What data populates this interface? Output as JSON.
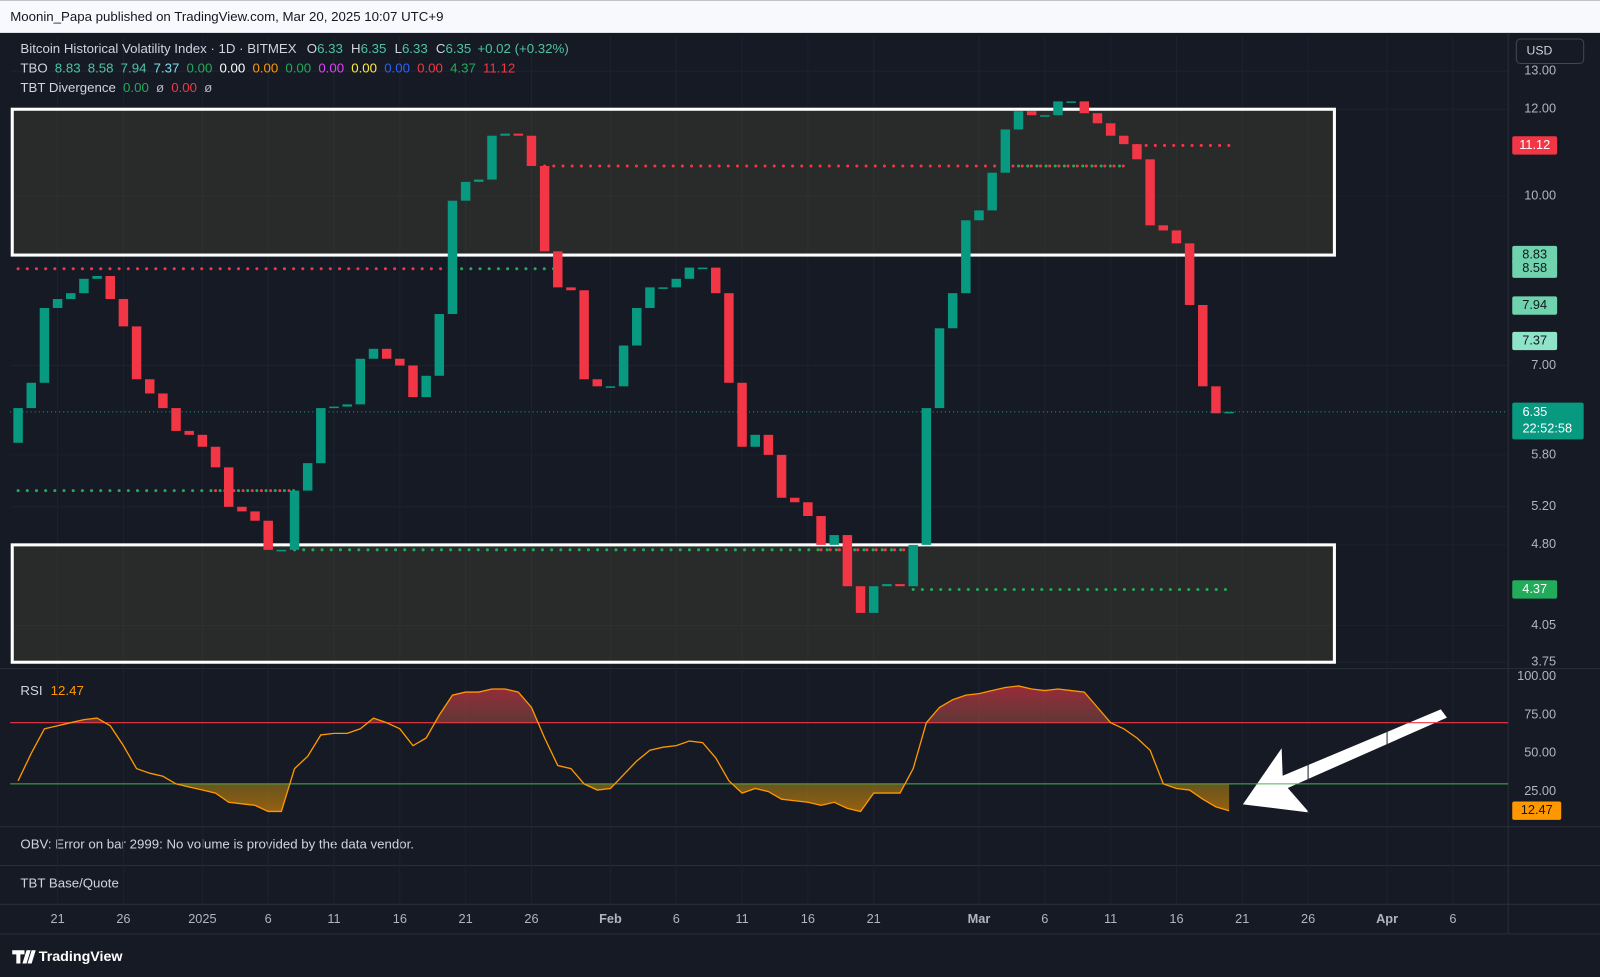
{
  "header": {
    "byline": "Moonin_Papa published on TradingView.com, Mar 20, 2025 10:07 UTC+9",
    "currency": "USD",
    "brand": "TradingView"
  },
  "legend": {
    "symbol": "Bitcoin Historical Volatility Index · 1D · BITMEX",
    "ohlc": [
      {
        "label": "O",
        "value": "6.33"
      },
      {
        "label": "H",
        "value": "6.35"
      },
      {
        "label": "L",
        "value": "6.33"
      },
      {
        "label": "C",
        "value": "6.35"
      }
    ],
    "change": "+0.02 (+0.32%)",
    "tbo": {
      "label": "TBO",
      "values": [
        {
          "text": "8.83",
          "color": "#4fc3a1"
        },
        {
          "text": "8.58",
          "color": "#4fc3a1"
        },
        {
          "text": "7.94",
          "color": "#4fc3a1"
        },
        {
          "text": "7.37",
          "color": "#80deea"
        },
        {
          "text": "0.00",
          "color": "#22ab5a"
        },
        {
          "text": "0.00",
          "color": "#ffffff"
        },
        {
          "text": "0.00",
          "color": "#ff9800"
        },
        {
          "text": "0.00",
          "color": "#22ab5a"
        },
        {
          "text": "0.00",
          "color": "#e040fb"
        },
        {
          "text": "0.00",
          "color": "#ffeb3b"
        },
        {
          "text": "0.00",
          "color": "#2962ff"
        },
        {
          "text": "0.00",
          "color": "#f23645"
        },
        {
          "text": "4.37",
          "color": "#22ab5a"
        },
        {
          "text": "11.12",
          "color": "#f23645"
        }
      ]
    },
    "tbt": {
      "label": "TBT Divergence",
      "values": [
        {
          "text": "0.00",
          "color": "#22ab5a"
        },
        {
          "text": "ø",
          "color": "#b2b5be"
        },
        {
          "text": "0.00",
          "color": "#f23645"
        },
        {
          "text": "ø",
          "color": "#b2b5be"
        }
      ]
    }
  },
  "chart_data": {
    "type": "candlestick",
    "log": true,
    "grid": true,
    "up_color": "#089981",
    "down_color": "#f23645",
    "xlim": [
      -0.6,
      113.2
    ],
    "ylim": [
      3.7,
      14
    ],
    "xticks": [
      {
        "value": 3,
        "label": "21"
      },
      {
        "value": 8,
        "label": "26"
      },
      {
        "value": 14,
        "label": "2025"
      },
      {
        "value": 19,
        "label": "6"
      },
      {
        "value": 24,
        "label": "11"
      },
      {
        "value": 29,
        "label": "16"
      },
      {
        "value": 34,
        "label": "21"
      },
      {
        "value": 39,
        "label": "26"
      },
      {
        "value": 45,
        "label": "Feb"
      },
      {
        "value": 50,
        "label": "6"
      },
      {
        "value": 55,
        "label": "11"
      },
      {
        "value": 60,
        "label": "16"
      },
      {
        "value": 65,
        "label": "21"
      },
      {
        "value": 73,
        "label": "Mar"
      },
      {
        "value": 78,
        "label": "6"
      },
      {
        "value": 83,
        "label": "11"
      },
      {
        "value": 88,
        "label": "16"
      },
      {
        "value": 93,
        "label": "21"
      },
      {
        "value": 98,
        "label": "26"
      },
      {
        "value": 104,
        "label": "Apr"
      },
      {
        "value": 109,
        "label": "6"
      }
    ],
    "yticks": [
      {
        "value": 13,
        "label": "13.00"
      },
      {
        "value": 12,
        "label": "12.00"
      },
      {
        "value": 10,
        "label": "10.00"
      },
      {
        "value": 7,
        "label": "7.00"
      },
      {
        "value": 5.8,
        "label": "5.80"
      },
      {
        "value": 5.2,
        "label": "5.20"
      },
      {
        "value": 4.8,
        "label": "4.80"
      },
      {
        "value": 4.05,
        "label": "4.05"
      },
      {
        "value": 3.75,
        "label": "3.75"
      }
    ],
    "open": [
      5.95,
      6.4,
      6.75,
      7.9,
      8.05,
      8.15,
      8.4,
      8.45,
      8.05,
      7.6,
      6.8,
      6.6,
      6.4,
      6.1,
      6.05,
      5.9,
      5.65,
      5.2,
      5.15,
      5.05,
      4.75,
      4.75,
      5.38,
      5.7,
      6.4,
      6.42,
      6.45,
      7.1,
      7.25,
      7.1,
      7.0,
      6.55,
      6.85,
      7.8,
      9.9,
      10.3,
      10.35,
      11.35,
      11.4,
      11.35,
      10.65,
      8.9,
      8.25,
      8.2,
      6.8,
      6.7,
      6.7,
      7.3,
      7.9,
      8.25,
      8.25,
      8.4,
      8.6,
      8.6,
      8.15,
      6.75,
      5.9,
      6.05,
      5.8,
      5.3,
      5.25,
      5.1,
      4.8,
      4.9,
      4.4,
      4.16,
      4.4,
      4.42,
      4.4,
      4.8,
      6.4,
      7.57,
      8.15,
      9.5,
      9.7,
      10.5,
      11.5,
      11.95,
      11.85,
      11.85,
      12.2,
      12.2,
      11.9,
      11.65,
      11.35,
      11.15,
      10.8,
      9.4,
      9.3,
      9.05,
      7.95,
      6.7,
      6.33
    ],
    "close": [
      6.4,
      6.75,
      7.9,
      8.05,
      8.15,
      8.4,
      8.45,
      8.05,
      7.6,
      6.8,
      6.6,
      6.4,
      6.1,
      6.05,
      5.9,
      5.65,
      5.2,
      5.15,
      5.05,
      4.75,
      4.75,
      5.38,
      5.7,
      6.4,
      6.42,
      6.45,
      7.1,
      7.25,
      7.1,
      7.0,
      6.55,
      6.85,
      7.8,
      9.9,
      10.3,
      10.35,
      11.35,
      11.4,
      11.35,
      10.65,
      8.9,
      8.25,
      8.2,
      6.8,
      6.7,
      6.7,
      7.3,
      7.9,
      8.25,
      8.25,
      8.4,
      8.6,
      8.6,
      8.15,
      6.75,
      5.9,
      6.05,
      5.8,
      5.3,
      5.25,
      5.1,
      4.8,
      4.9,
      4.4,
      4.16,
      4.4,
      4.42,
      4.4,
      4.8,
      6.4,
      7.57,
      8.15,
      9.5,
      9.7,
      10.5,
      11.5,
      11.95,
      11.85,
      11.85,
      12.2,
      12.2,
      11.9,
      11.65,
      11.35,
      11.15,
      10.8,
      9.4,
      9.3,
      9.05,
      7.95,
      6.7,
      6.33,
      6.35
    ],
    "zones": [
      {
        "top": 12,
        "bottom": 8.83,
        "end": 100
      },
      {
        "top": 4.8,
        "bottom": 3.75,
        "end": 100
      }
    ],
    "levels": [
      {
        "value": 8.58,
        "color": "#f23645",
        "from": 0,
        "to": 33
      },
      {
        "value": 8.58,
        "color": "#22ab5a",
        "from": 33,
        "to": 41
      },
      {
        "value": 10.65,
        "color": "#f23645",
        "from": 40,
        "to": 84
      },
      {
        "value": 10.65,
        "color": "#22ab5a",
        "from": 76,
        "to": 84
      },
      {
        "value": 11.12,
        "color": "#f23645",
        "from": 85,
        "to": 92
      },
      {
        "value": 5.38,
        "color": "#22ab5a",
        "from": 0,
        "to": 21
      },
      {
        "value": 5.38,
        "color": "#f23645",
        "from": 15,
        "to": 21
      },
      {
        "value": 4.75,
        "color": "#22ab5a",
        "from": 21,
        "to": 68
      },
      {
        "value": 4.75,
        "color": "#f23645",
        "from": 61,
        "to": 68
      },
      {
        "value": 4.37,
        "color": "#22ab5a",
        "from": 68,
        "to": 92
      }
    ],
    "price_tags": [
      {
        "value": 11.12,
        "label": "11.12",
        "color": "#f23645",
        "text_color": "#ffffff"
      },
      {
        "value": 8.83,
        "label": "8.83",
        "color": "#6fd3ad",
        "text_color": "#131722"
      },
      {
        "value": 8.58,
        "label": "8.58",
        "color": "#6fd3ad",
        "text_color": "#131722"
      },
      {
        "value": 7.94,
        "label": "7.94",
        "color": "#6fd3ad",
        "text_color": "#131722"
      },
      {
        "value": 7.37,
        "label": "7.37",
        "color": "#8fe3c8",
        "text_color": "#131722"
      },
      {
        "value": 4.37,
        "label": "4.37",
        "color": "#22ab5a",
        "text_color": "#ffffff"
      }
    ],
    "last": {
      "value": 6.35,
      "label": "6.35",
      "countdown": "22:52:58",
      "color": "#089981"
    },
    "rsi": {
      "label": "RSI",
      "value": 12.47,
      "value_label": "12.47",
      "color": "#ff9800",
      "ylim": [
        2,
        100
      ],
      "yticks": [
        {
          "value": 100,
          "label": "100.00"
        },
        {
          "value": 75,
          "label": "75.00"
        },
        {
          "value": 50,
          "label": "50.00"
        },
        {
          "value": 25,
          "label": "25.00"
        }
      ],
      "levels": [
        {
          "value": 70,
          "color": "#f23645"
        },
        {
          "value": 30,
          "color": "#4caf50"
        }
      ],
      "values": [
        32,
        50,
        66,
        68,
        70,
        72,
        73,
        68,
        55,
        40,
        37,
        35,
        30,
        28,
        26,
        24,
        18,
        17,
        16,
        12,
        12,
        40,
        48,
        62,
        63,
        63,
        66,
        73,
        70,
        66,
        55,
        60,
        75,
        88,
        90,
        90,
        92,
        92,
        90,
        80,
        60,
        42,
        40,
        30,
        26,
        27,
        36,
        45,
        52,
        54,
        55,
        58,
        57,
        47,
        32,
        24,
        27,
        25,
        20,
        19,
        18,
        16,
        18,
        14,
        12,
        24,
        24,
        24,
        40,
        70,
        80,
        85,
        88,
        89,
        91,
        93,
        94,
        92,
        91,
        92,
        91,
        90,
        80,
        70,
        66,
        60,
        52,
        30,
        27,
        26,
        20,
        15,
        12.47
      ]
    }
  },
  "panes": {
    "obv": "OBV: Error on bar 2999: No volume is provided by the data vendor.",
    "tbt_base": "TBT Base/Quote"
  }
}
